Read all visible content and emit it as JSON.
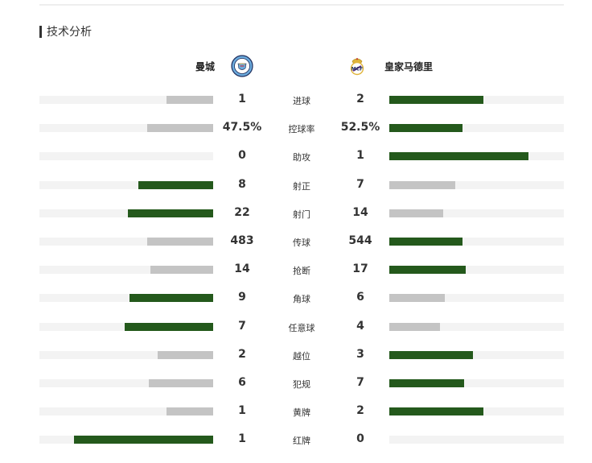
{
  "section": {
    "title": "技术分析"
  },
  "teams": {
    "home": {
      "name": "曼城",
      "logo_icon": "manchester-city-crest-icon",
      "logo_color": "#6CABDD"
    },
    "away": {
      "name": "皇家马德里",
      "logo_icon": "real-madrid-crest-icon",
      "logo_color": "#E0B43A"
    }
  },
  "colors": {
    "win_bar": "#24591C",
    "lose_bar": "#C4C4C4",
    "track": "#F3F3F3"
  },
  "stats": [
    {
      "label": "进球",
      "home": "1",
      "away": "2",
      "home_share": 0.27,
      "away_share": 0.54,
      "leader": "away"
    },
    {
      "label": "控球率",
      "home": "47.5%",
      "away": "52.5%",
      "home_share": 0.38,
      "away_share": 0.42,
      "leader": "away"
    },
    {
      "label": "助攻",
      "home": "0",
      "away": "1",
      "home_share": 0.0,
      "away_share": 0.8,
      "leader": "away"
    },
    {
      "label": "射正",
      "home": "8",
      "away": "7",
      "home_share": 0.43,
      "away_share": 0.38,
      "leader": "home"
    },
    {
      "label": "射门",
      "home": "22",
      "away": "14",
      "home_share": 0.49,
      "away_share": 0.31,
      "leader": "home"
    },
    {
      "label": "传球",
      "home": "483",
      "away": "544",
      "home_share": 0.38,
      "away_share": 0.42,
      "leader": "away"
    },
    {
      "label": "抢断",
      "home": "14",
      "away": "17",
      "home_share": 0.36,
      "away_share": 0.44,
      "leader": "away"
    },
    {
      "label": "角球",
      "home": "9",
      "away": "6",
      "home_share": 0.48,
      "away_share": 0.32,
      "leader": "home"
    },
    {
      "label": "任意球",
      "home": "7",
      "away": "4",
      "home_share": 0.51,
      "away_share": 0.29,
      "leader": "home"
    },
    {
      "label": "越位",
      "home": "2",
      "away": "3",
      "home_share": 0.32,
      "away_share": 0.48,
      "leader": "away"
    },
    {
      "label": "犯规",
      "home": "6",
      "away": "7",
      "home_share": 0.37,
      "away_share": 0.43,
      "leader": "away"
    },
    {
      "label": "黄牌",
      "home": "1",
      "away": "2",
      "home_share": 0.27,
      "away_share": 0.54,
      "leader": "away"
    },
    {
      "label": "红牌",
      "home": "1",
      "away": "0",
      "home_share": 0.8,
      "away_share": 0.0,
      "leader": "home"
    }
  ]
}
